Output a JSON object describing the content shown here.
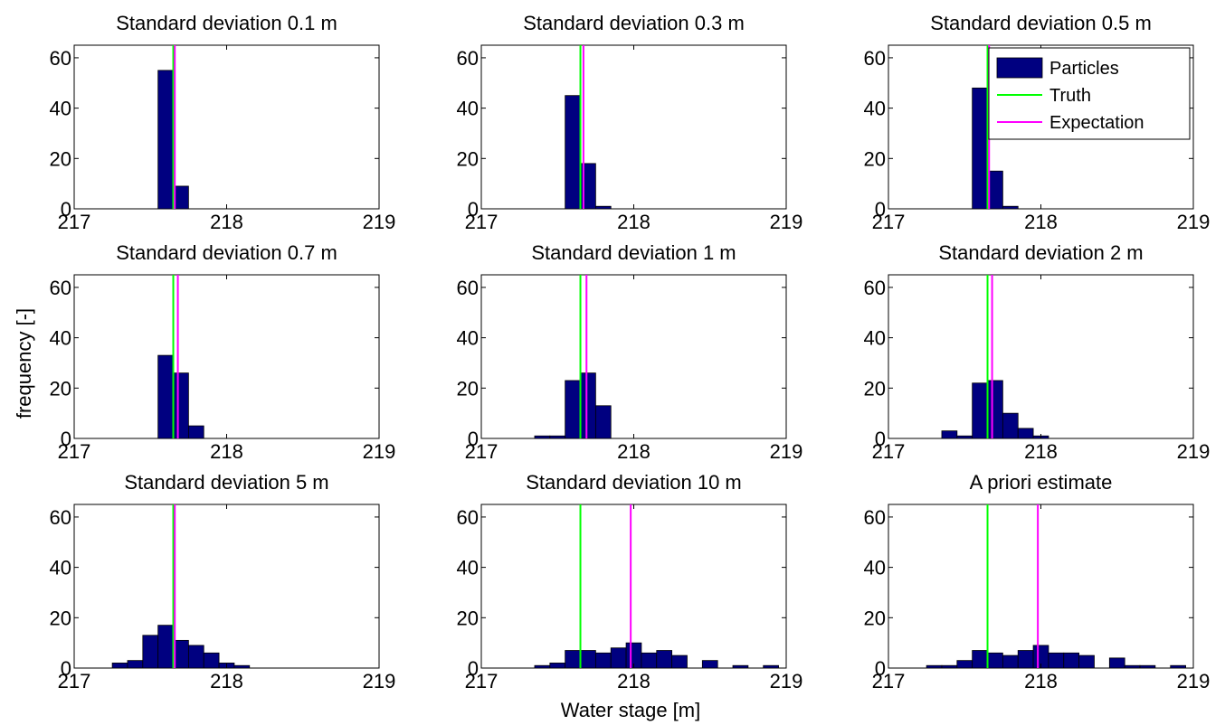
{
  "figure": {
    "ylabel": "frequency [-]",
    "xlabel": "Water stage [m]",
    "legend": {
      "entries": [
        {
          "label": "Particles",
          "kind": "bar",
          "color": "#000080"
        },
        {
          "label": "Truth",
          "kind": "line",
          "color": "#00ff00"
        },
        {
          "label": "Expectation",
          "kind": "line",
          "color": "#ff00ff"
        }
      ],
      "placement": "top-right of panel 3"
    },
    "colors": {
      "bars": "#000080",
      "truth": "#00ff00",
      "expectation": "#ff00ff"
    }
  },
  "chart_data": [
    {
      "type": "bar",
      "title": "Standard deviation 0.1 m",
      "xlim": [
        217,
        219
      ],
      "ylim": [
        0,
        65
      ],
      "xticks": [
        "217",
        "218",
        "219"
      ],
      "yticks": [
        "0",
        "20",
        "40",
        "60"
      ],
      "bin_width": 0.1,
      "bins": [
        {
          "x": 217.6,
          "y": 55
        },
        {
          "x": 217.7,
          "y": 9
        }
      ],
      "truth": 217.65,
      "expectation": 217.66
    },
    {
      "type": "bar",
      "title": "Standard deviation 0.3 m",
      "xlim": [
        217,
        219
      ],
      "ylim": [
        0,
        65
      ],
      "xticks": [
        "217",
        "218",
        "219"
      ],
      "yticks": [
        "0",
        "20",
        "40",
        "60"
      ],
      "bin_width": 0.1,
      "bins": [
        {
          "x": 217.6,
          "y": 45
        },
        {
          "x": 217.7,
          "y": 18
        },
        {
          "x": 217.8,
          "y": 1
        }
      ],
      "truth": 217.65,
      "expectation": 217.67
    },
    {
      "type": "bar",
      "title": "Standard deviation 0.5 m",
      "xlim": [
        217,
        219
      ],
      "ylim": [
        0,
        65
      ],
      "xticks": [
        "217",
        "218",
        "219"
      ],
      "yticks": [
        "0",
        "20",
        "40",
        "60"
      ],
      "bin_width": 0.1,
      "bins": [
        {
          "x": 217.6,
          "y": 48
        },
        {
          "x": 217.7,
          "y": 15
        },
        {
          "x": 217.8,
          "y": 1
        }
      ],
      "truth": 217.65,
      "expectation": 217.66,
      "legend": true
    },
    {
      "type": "bar",
      "title": "Standard deviation 0.7 m",
      "xlim": [
        217,
        219
      ],
      "ylim": [
        0,
        65
      ],
      "xticks": [
        "217",
        "218",
        "219"
      ],
      "yticks": [
        "0",
        "20",
        "40",
        "60"
      ],
      "bin_width": 0.1,
      "bins": [
        {
          "x": 217.6,
          "y": 33
        },
        {
          "x": 217.7,
          "y": 26
        },
        {
          "x": 217.8,
          "y": 5
        }
      ],
      "truth": 217.65,
      "expectation": 217.68
    },
    {
      "type": "bar",
      "title": "Standard deviation 1 m",
      "xlim": [
        217,
        219
      ],
      "ylim": [
        0,
        65
      ],
      "xticks": [
        "217",
        "218",
        "219"
      ],
      "yticks": [
        "0",
        "20",
        "40",
        "60"
      ],
      "bin_width": 0.1,
      "bins": [
        {
          "x": 217.4,
          "y": 1
        },
        {
          "x": 217.5,
          "y": 1
        },
        {
          "x": 217.6,
          "y": 23
        },
        {
          "x": 217.7,
          "y": 26
        },
        {
          "x": 217.8,
          "y": 13
        }
      ],
      "truth": 217.65,
      "expectation": 217.69
    },
    {
      "type": "bar",
      "title": "Standard deviation 2 m",
      "xlim": [
        217,
        219
      ],
      "ylim": [
        0,
        65
      ],
      "xticks": [
        "217",
        "218",
        "219"
      ],
      "yticks": [
        "0",
        "20",
        "40",
        "60"
      ],
      "bin_width": 0.1,
      "bins": [
        {
          "x": 217.4,
          "y": 3
        },
        {
          "x": 217.5,
          "y": 1
        },
        {
          "x": 217.6,
          "y": 22
        },
        {
          "x": 217.7,
          "y": 23
        },
        {
          "x": 217.8,
          "y": 10
        },
        {
          "x": 217.9,
          "y": 4
        },
        {
          "x": 218.0,
          "y": 1
        }
      ],
      "truth": 217.65,
      "expectation": 217.68
    },
    {
      "type": "bar",
      "title": "Standard deviation 5 m",
      "xlim": [
        217,
        219
      ],
      "ylim": [
        0,
        65
      ],
      "xticks": [
        "217",
        "218",
        "219"
      ],
      "yticks": [
        "0",
        "20",
        "40",
        "60"
      ],
      "bin_width": 0.1,
      "bins": [
        {
          "x": 217.3,
          "y": 2
        },
        {
          "x": 217.4,
          "y": 3
        },
        {
          "x": 217.5,
          "y": 13
        },
        {
          "x": 217.6,
          "y": 17
        },
        {
          "x": 217.7,
          "y": 11
        },
        {
          "x": 217.8,
          "y": 9
        },
        {
          "x": 217.9,
          "y": 6
        },
        {
          "x": 218.0,
          "y": 2
        },
        {
          "x": 218.1,
          "y": 1
        }
      ],
      "truth": 217.65,
      "expectation": 217.66
    },
    {
      "type": "bar",
      "title": "Standard deviation 10 m",
      "xlim": [
        217,
        219
      ],
      "ylim": [
        0,
        65
      ],
      "xticks": [
        "217",
        "218",
        "219"
      ],
      "yticks": [
        "0",
        "20",
        "40",
        "60"
      ],
      "bin_width": 0.1,
      "bins": [
        {
          "x": 217.4,
          "y": 1
        },
        {
          "x": 217.5,
          "y": 2
        },
        {
          "x": 217.6,
          "y": 7
        },
        {
          "x": 217.7,
          "y": 7
        },
        {
          "x": 217.8,
          "y": 6
        },
        {
          "x": 217.9,
          "y": 8
        },
        {
          "x": 218.0,
          "y": 10
        },
        {
          "x": 218.1,
          "y": 6
        },
        {
          "x": 218.2,
          "y": 7
        },
        {
          "x": 218.3,
          "y": 5
        },
        {
          "x": 218.5,
          "y": 3
        },
        {
          "x": 218.7,
          "y": 1
        },
        {
          "x": 218.9,
          "y": 1
        }
      ],
      "truth": 217.65,
      "expectation": 217.98
    },
    {
      "type": "bar",
      "title": "A priori estimate",
      "xlim": [
        217,
        219
      ],
      "ylim": [
        0,
        65
      ],
      "xticks": [
        "217",
        "218",
        "219"
      ],
      "yticks": [
        "0",
        "20",
        "40",
        "60"
      ],
      "bin_width": 0.1,
      "bins": [
        {
          "x": 217.3,
          "y": 1
        },
        {
          "x": 217.4,
          "y": 1
        },
        {
          "x": 217.5,
          "y": 3
        },
        {
          "x": 217.6,
          "y": 7
        },
        {
          "x": 217.7,
          "y": 6
        },
        {
          "x": 217.8,
          "y": 5
        },
        {
          "x": 217.9,
          "y": 7
        },
        {
          "x": 218.0,
          "y": 9
        },
        {
          "x": 218.1,
          "y": 6
        },
        {
          "x": 218.2,
          "y": 6
        },
        {
          "x": 218.3,
          "y": 5
        },
        {
          "x": 218.5,
          "y": 4
        },
        {
          "x": 218.6,
          "y": 1
        },
        {
          "x": 218.7,
          "y": 1
        },
        {
          "x": 218.9,
          "y": 1
        }
      ],
      "truth": 217.65,
      "expectation": 217.98
    }
  ]
}
